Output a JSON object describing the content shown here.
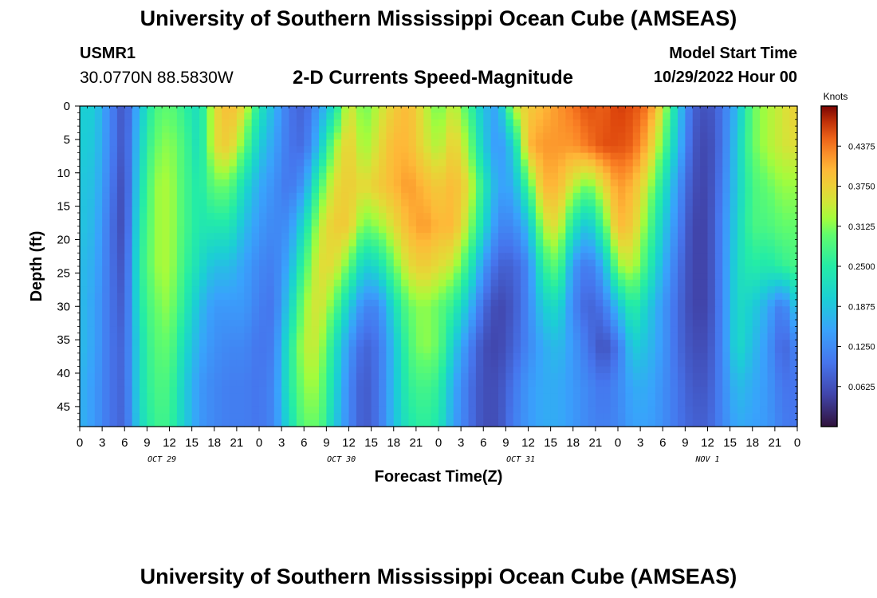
{
  "header": {
    "title": "University of Southern Mississippi Ocean Cube (AMSEAS)",
    "station_id": "USMR1",
    "station_coords": "30.0770N  88.5830W",
    "subtitle": "2-D Currents Speed-Magnitude",
    "model_start_label": "Model Start Time",
    "model_start_value": "10/29/2022 Hour 00"
  },
  "footer": {
    "title": "University of Southern Mississippi Ocean Cube (AMSEAS)"
  },
  "chart_data": {
    "type": "heatmap",
    "title": "2-D Currents Speed-Magnitude",
    "xlabel": "Forecast Time(Z)",
    "ylabel": "Depth (ft)",
    "x_range_hours": [
      0,
      96
    ],
    "y_range_ft": [
      0,
      48
    ],
    "y_inverted": true,
    "x_ticks": [
      "0",
      "3",
      "6",
      "9",
      "12",
      "15",
      "18",
      "21",
      "0",
      "3",
      "6",
      "9",
      "12",
      "15",
      "18",
      "21",
      "0",
      "3",
      "6",
      "9",
      "12",
      "15",
      "18",
      "21",
      "0",
      "3",
      "6",
      "9",
      "12",
      "15",
      "18",
      "21",
      "0"
    ],
    "y_ticks": [
      "0",
      "5",
      "10",
      "15",
      "20",
      "25",
      "30",
      "35",
      "40",
      "45"
    ],
    "date_labels": [
      {
        "label": "OCT 29",
        "hour": 11
      },
      {
        "label": "OCT 30",
        "hour": 35
      },
      {
        "label": "OCT 31",
        "hour": 59
      },
      {
        "label": "NOV 1",
        "hour": 84
      }
    ],
    "colorbar": {
      "unit": "Knots",
      "range": [
        0.0,
        0.5
      ],
      "ticks": [
        "0.4375",
        "0.3750",
        "0.3125",
        "0.2500",
        "0.1875",
        "0.1250",
        "0.0625"
      ]
    },
    "hours": [
      0,
      2,
      4,
      6,
      8,
      10,
      12,
      14,
      16,
      18,
      20,
      22,
      24,
      26,
      28,
      30,
      32,
      34,
      36,
      38,
      40,
      42,
      44,
      46,
      48,
      50,
      52,
      54,
      56,
      58,
      60,
      62,
      64,
      66,
      68,
      70,
      72,
      74,
      76,
      78,
      80,
      82,
      84,
      86,
      88,
      90,
      92,
      94,
      96
    ],
    "depths_ft": [
      0,
      6,
      12,
      18,
      24,
      30,
      36,
      42,
      48
    ],
    "speed_knots": [
      [
        0.2,
        0.2,
        0.12,
        0.06,
        0.18,
        0.28,
        0.3,
        0.26,
        0.22,
        0.36,
        0.4,
        0.36,
        0.24,
        0.17,
        0.1,
        0.08,
        0.14,
        0.22,
        0.36,
        0.3,
        0.34,
        0.38,
        0.4,
        0.35,
        0.3,
        0.35,
        0.28,
        0.18,
        0.15,
        0.34,
        0.38,
        0.4,
        0.42,
        0.44,
        0.46,
        0.45,
        0.47,
        0.46,
        0.44,
        0.35,
        0.2,
        0.08,
        0.06,
        0.1,
        0.18,
        0.3,
        0.33,
        0.35,
        0.38
      ],
      [
        0.2,
        0.19,
        0.12,
        0.06,
        0.2,
        0.3,
        0.32,
        0.28,
        0.22,
        0.36,
        0.38,
        0.3,
        0.2,
        0.15,
        0.1,
        0.09,
        0.18,
        0.32,
        0.38,
        0.32,
        0.36,
        0.4,
        0.4,
        0.36,
        0.33,
        0.38,
        0.32,
        0.2,
        0.13,
        0.2,
        0.4,
        0.42,
        0.42,
        0.42,
        0.44,
        0.46,
        0.46,
        0.45,
        0.4,
        0.3,
        0.18,
        0.07,
        0.05,
        0.1,
        0.2,
        0.3,
        0.33,
        0.35,
        0.36
      ],
      [
        0.19,
        0.18,
        0.11,
        0.05,
        0.22,
        0.32,
        0.33,
        0.28,
        0.24,
        0.3,
        0.3,
        0.22,
        0.16,
        0.13,
        0.1,
        0.14,
        0.28,
        0.36,
        0.38,
        0.36,
        0.38,
        0.4,
        0.42,
        0.4,
        0.38,
        0.4,
        0.36,
        0.25,
        0.15,
        0.16,
        0.28,
        0.4,
        0.4,
        0.34,
        0.3,
        0.36,
        0.42,
        0.4,
        0.34,
        0.24,
        0.14,
        0.06,
        0.05,
        0.11,
        0.2,
        0.28,
        0.3,
        0.32,
        0.32
      ],
      [
        0.19,
        0.17,
        0.1,
        0.05,
        0.24,
        0.32,
        0.33,
        0.28,
        0.24,
        0.24,
        0.24,
        0.18,
        0.14,
        0.12,
        0.13,
        0.22,
        0.34,
        0.38,
        0.38,
        0.3,
        0.32,
        0.36,
        0.4,
        0.42,
        0.4,
        0.4,
        0.33,
        0.22,
        0.12,
        0.12,
        0.18,
        0.34,
        0.36,
        0.24,
        0.18,
        0.28,
        0.4,
        0.38,
        0.3,
        0.2,
        0.12,
        0.05,
        0.05,
        0.12,
        0.21,
        0.28,
        0.28,
        0.3,
        0.3
      ],
      [
        0.18,
        0.16,
        0.1,
        0.06,
        0.25,
        0.32,
        0.33,
        0.27,
        0.22,
        0.18,
        0.18,
        0.15,
        0.12,
        0.11,
        0.16,
        0.28,
        0.36,
        0.36,
        0.3,
        0.2,
        0.22,
        0.3,
        0.36,
        0.38,
        0.36,
        0.34,
        0.26,
        0.14,
        0.08,
        0.08,
        0.12,
        0.26,
        0.3,
        0.14,
        0.1,
        0.16,
        0.32,
        0.34,
        0.26,
        0.17,
        0.1,
        0.05,
        0.05,
        0.12,
        0.22,
        0.25,
        0.24,
        0.26,
        0.28
      ],
      [
        0.18,
        0.15,
        0.1,
        0.07,
        0.24,
        0.3,
        0.32,
        0.25,
        0.18,
        0.14,
        0.14,
        0.14,
        0.11,
        0.1,
        0.2,
        0.32,
        0.36,
        0.3,
        0.2,
        0.12,
        0.12,
        0.22,
        0.3,
        0.32,
        0.3,
        0.26,
        0.18,
        0.09,
        0.05,
        0.07,
        0.12,
        0.2,
        0.22,
        0.12,
        0.08,
        0.1,
        0.18,
        0.26,
        0.2,
        0.14,
        0.09,
        0.05,
        0.05,
        0.12,
        0.22,
        0.2,
        0.16,
        0.1,
        0.2
      ],
      [
        0.18,
        0.15,
        0.1,
        0.08,
        0.22,
        0.29,
        0.3,
        0.22,
        0.16,
        0.13,
        0.12,
        0.12,
        0.1,
        0.11,
        0.24,
        0.34,
        0.34,
        0.24,
        0.14,
        0.08,
        0.1,
        0.18,
        0.28,
        0.32,
        0.3,
        0.2,
        0.12,
        0.06,
        0.05,
        0.08,
        0.12,
        0.16,
        0.18,
        0.14,
        0.1,
        0.06,
        0.1,
        0.2,
        0.18,
        0.14,
        0.09,
        0.06,
        0.06,
        0.12,
        0.22,
        0.18,
        0.14,
        0.08,
        0.12
      ],
      [
        0.17,
        0.14,
        0.1,
        0.08,
        0.22,
        0.28,
        0.28,
        0.2,
        0.14,
        0.12,
        0.11,
        0.11,
        0.1,
        0.12,
        0.24,
        0.32,
        0.32,
        0.22,
        0.12,
        0.07,
        0.1,
        0.18,
        0.26,
        0.28,
        0.26,
        0.16,
        0.1,
        0.06,
        0.06,
        0.1,
        0.14,
        0.16,
        0.16,
        0.14,
        0.12,
        0.1,
        0.12,
        0.16,
        0.16,
        0.13,
        0.1,
        0.07,
        0.07,
        0.12,
        0.18,
        0.16,
        0.14,
        0.1,
        0.1
      ],
      [
        0.17,
        0.14,
        0.1,
        0.08,
        0.21,
        0.27,
        0.27,
        0.2,
        0.14,
        0.12,
        0.11,
        0.11,
        0.1,
        0.12,
        0.22,
        0.3,
        0.3,
        0.2,
        0.12,
        0.07,
        0.1,
        0.18,
        0.24,
        0.26,
        0.24,
        0.15,
        0.1,
        0.06,
        0.06,
        0.11,
        0.14,
        0.16,
        0.16,
        0.14,
        0.12,
        0.11,
        0.12,
        0.15,
        0.15,
        0.13,
        0.1,
        0.08,
        0.08,
        0.12,
        0.16,
        0.15,
        0.14,
        0.11,
        0.1
      ]
    ]
  }
}
